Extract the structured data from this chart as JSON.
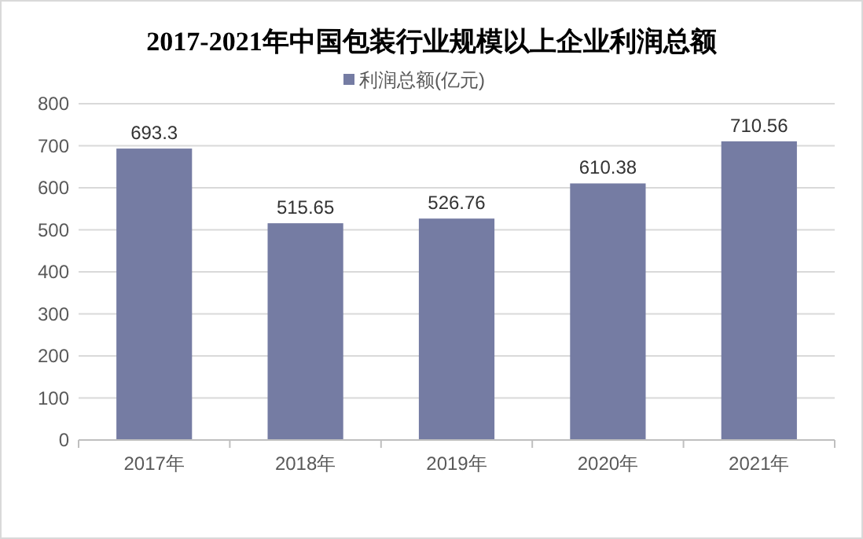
{
  "chart_data": {
    "type": "bar",
    "title": "2017-2021年中国包装行业规模以上企业利润总额",
    "categories": [
      "2017年",
      "2018年",
      "2019年",
      "2020年",
      "2021年"
    ],
    "series": [
      {
        "name": "利润总额(亿元)",
        "color": "#757ca3",
        "values": [
          693.3,
          515.65,
          526.76,
          610.38,
          710.56
        ]
      }
    ],
    "ylim": [
      0,
      800
    ],
    "yticks": [
      0,
      100,
      200,
      300,
      400,
      500,
      600,
      700,
      800
    ],
    "grid": "y",
    "legend": "top",
    "data_labels": true
  }
}
